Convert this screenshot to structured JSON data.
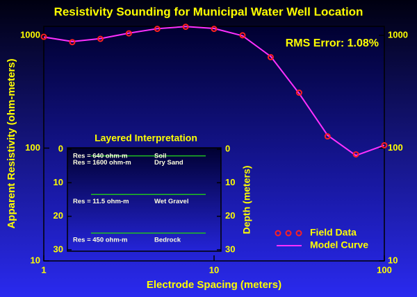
{
  "chart_data": [
    {
      "type": "line",
      "title": "Resistivity Sounding for Municipal Water Well Location",
      "x_label": "Electrode Spacing (meters)",
      "y_label": "Apparent Resistivity (ohm-meters)",
      "annotation": "RMS Error: 1.08%",
      "log_x": true,
      "log_y": true,
      "xlim": [
        1,
        100
      ],
      "xticks": [
        1,
        10,
        100
      ],
      "ylim": [
        10,
        1200
      ],
      "yticks": [
        10,
        100,
        1000
      ],
      "legend": "lower right",
      "x": [
        1,
        1.47,
        2.15,
        3.16,
        4.64,
        6.81,
        10,
        14.7,
        21.5,
        31.6,
        46.4,
        68.1,
        100
      ],
      "series": [
        {
          "name": "Field Data",
          "color": "#ff2020",
          "mode": "markers",
          "values": [
            970,
            870,
            930,
            1040,
            1140,
            1190,
            1140,
            1000,
            640,
            310,
            127,
            88,
            106
          ]
        },
        {
          "name": "Model Curve",
          "color": "#ff30ff",
          "mode": "line",
          "values": [
            965,
            880,
            935,
            1045,
            1145,
            1195,
            1150,
            990,
            650,
            305,
            130,
            86,
            106
          ]
        }
      ]
    },
    {
      "type": "layers",
      "title": "Layered Interpretation",
      "y_label": "Depth (meters)",
      "ylim": [
        0,
        30
      ],
      "yticks": [
        0,
        10,
        20,
        30
      ],
      "boundary_color": "#20c020",
      "boundaries": [
        2,
        13.5,
        25
      ],
      "layers": [
        {
          "resistivity": "Res = 640 ohm-m",
          "material": "Soil"
        },
        {
          "resistivity": "Res = 1600 ohm-m",
          "material": "Dry Sand"
        },
        {
          "resistivity": "Res = 11.5 ohm-m",
          "material": "Wet Gravel"
        },
        {
          "resistivity": "Res = 450 ohm-m",
          "material": "Bedrock"
        }
      ]
    }
  ]
}
